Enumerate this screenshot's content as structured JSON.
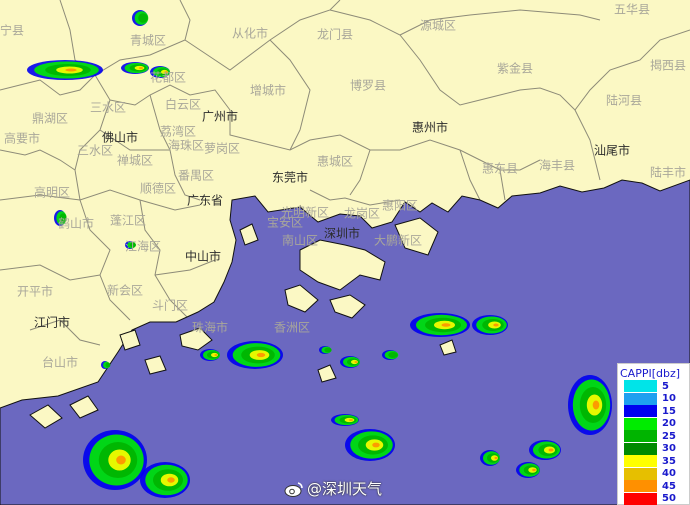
{
  "map": {
    "land_color": "#fbf8c4",
    "sea_color": "#6b68c0",
    "boundary_color": "#8a8a7a",
    "labels": [
      {
        "text": "宁县",
        "major": false
      },
      {
        "text": "青城区",
        "major": false
      },
      {
        "text": "从化市",
        "major": false
      },
      {
        "text": "龙门县",
        "major": false
      },
      {
        "text": "源城区",
        "major": false
      },
      {
        "text": "五华县",
        "major": false
      },
      {
        "text": "紫金县",
        "major": false
      },
      {
        "text": "揭西县",
        "major": false
      },
      {
        "text": "博罗县",
        "major": false
      },
      {
        "text": "花都区",
        "major": false
      },
      {
        "text": "白云区",
        "major": false
      },
      {
        "text": "三水区",
        "major": false
      },
      {
        "text": "鼎湖区",
        "major": false
      },
      {
        "text": "广州市",
        "major": true
      },
      {
        "text": "增城市",
        "major": false
      },
      {
        "text": "惠州市",
        "major": true
      },
      {
        "text": "陆河县",
        "major": false
      },
      {
        "text": "汕尾市",
        "major": true
      },
      {
        "text": "陆丰市",
        "major": false
      },
      {
        "text": "海丰县",
        "major": false
      },
      {
        "text": "惠东县",
        "major": false
      },
      {
        "text": "佛山市",
        "major": true
      },
      {
        "text": "高要市",
        "major": false
      },
      {
        "text": "荔湾区",
        "major": false
      },
      {
        "text": "海珠区",
        "major": false
      },
      {
        "text": "萝岗区",
        "major": false
      },
      {
        "text": "三水区",
        "major": false
      },
      {
        "text": "禅城区",
        "major": false
      },
      {
        "text": "番禺区",
        "major": false
      },
      {
        "text": "顺德区",
        "major": false
      },
      {
        "text": "东莞市",
        "major": true
      },
      {
        "text": "惠城区",
        "major": false
      },
      {
        "text": "高明区",
        "major": false
      },
      {
        "text": "广东省",
        "major": true
      },
      {
        "text": "鹤山市",
        "major": false
      },
      {
        "text": "蓬江区",
        "major": false
      },
      {
        "text": "江海区",
        "major": false
      },
      {
        "text": "光明新区",
        "major": false
      },
      {
        "text": "宝安区",
        "major": false
      },
      {
        "text": "南山区",
        "major": false
      },
      {
        "text": "深圳市",
        "major": true
      },
      {
        "text": "龙岗区",
        "major": false
      },
      {
        "text": "惠阳区",
        "major": false
      },
      {
        "text": "大鹏新区",
        "major": false
      },
      {
        "text": "中山市",
        "major": true
      },
      {
        "text": "开平市",
        "major": false
      },
      {
        "text": "新会区",
        "major": false
      },
      {
        "text": "江门市",
        "major": true
      },
      {
        "text": "斗门区",
        "major": false
      },
      {
        "text": "珠海市",
        "major": false
      },
      {
        "text": "香洲区",
        "major": false
      },
      {
        "text": "台山市",
        "major": false
      }
    ]
  },
  "legend": {
    "title": "CAPPI[dbz]",
    "items": [
      {
        "value": "5",
        "color": "#00e4e8"
      },
      {
        "value": "10",
        "color": "#1ea0f0"
      },
      {
        "value": "15",
        "color": "#0000f0"
      },
      {
        "value": "20",
        "color": "#00ec00"
      },
      {
        "value": "25",
        "color": "#00b400"
      },
      {
        "value": "30",
        "color": "#008a00"
      },
      {
        "value": "35",
        "color": "#ffff00"
      },
      {
        "value": "40",
        "color": "#e6bf00"
      },
      {
        "value": "45",
        "color": "#ff9000"
      },
      {
        "value": "50",
        "color": "#ff0000"
      }
    ]
  },
  "watermark": {
    "icon": "weibo-icon",
    "text": "@深圳天气"
  }
}
